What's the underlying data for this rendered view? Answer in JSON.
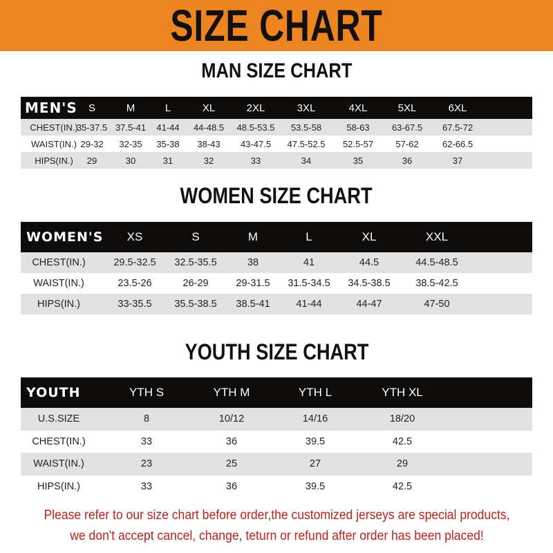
{
  "banner": {
    "title": "SIZE CHART",
    "color": "#ec8420"
  },
  "men": {
    "title": "MAN SIZE CHART",
    "header": [
      "MEN'S",
      "S",
      "M",
      "L",
      "XL",
      "2XL",
      "3XL",
      "4XL",
      "5XL",
      "6XL"
    ],
    "rows": [
      [
        "CHEST(IN.)",
        "35-37.5",
        "37.5-41",
        "41-44",
        "44-48.5",
        "48.5-53.5",
        "53.5-58",
        "58-63",
        "63-67.5",
        "67.5-72"
      ],
      [
        "WAIST(IN.)",
        "29-32",
        "32-35",
        "35-38",
        "38-43",
        "43-47.5",
        "47.5-52.5",
        "52.5-57",
        "57-62",
        "62-66.5"
      ],
      [
        "HIPS(IN.)",
        "29",
        "30",
        "31",
        "32",
        "33",
        "34",
        "35",
        "36",
        "37"
      ]
    ]
  },
  "women": {
    "title": "WOMEN SIZE CHART",
    "header": [
      "WOMEN'S",
      "XS",
      "S",
      "M",
      "L",
      "XL",
      "XXL"
    ],
    "rows": [
      [
        "CHEST(IN.)",
        "29.5-32.5",
        "32.5-35.5",
        "38",
        "41",
        "44.5",
        "44.5-48.5"
      ],
      [
        "WAIST(IN.)",
        "23.5-26",
        "26-29",
        "29-31.5",
        "31.5-34.5",
        "34.5-38.5",
        "38.5-42.5"
      ],
      [
        "HIPS(IN.)",
        "33-35.5",
        "35.5-38.5",
        "38.5-41",
        "41-44",
        "44-47",
        "47-50"
      ]
    ]
  },
  "youth": {
    "title": "YOUTH SIZE CHART",
    "header": [
      "YOUTH",
      "YTH S",
      "YTH M",
      "YTH L",
      "YTH XL"
    ],
    "rows": [
      [
        "U.S.SIZE",
        "8",
        "10/12",
        "14/16",
        "18/20"
      ],
      [
        "CHEST(IN.)",
        "33",
        "36",
        "39.5",
        "42.5"
      ],
      [
        "WAIST(IN.)",
        "23",
        "25",
        "27",
        "29"
      ],
      [
        "HIPS(IN.)",
        "33",
        "36",
        "39.5",
        "42.5"
      ]
    ]
  },
  "notice": {
    "line1": "Please refer to our size chart before order,the customized jerseys are special products,",
    "line2": "we don't accept cancel, change, teturn or refund after order has been placed!",
    "color": "#b8231b"
  }
}
